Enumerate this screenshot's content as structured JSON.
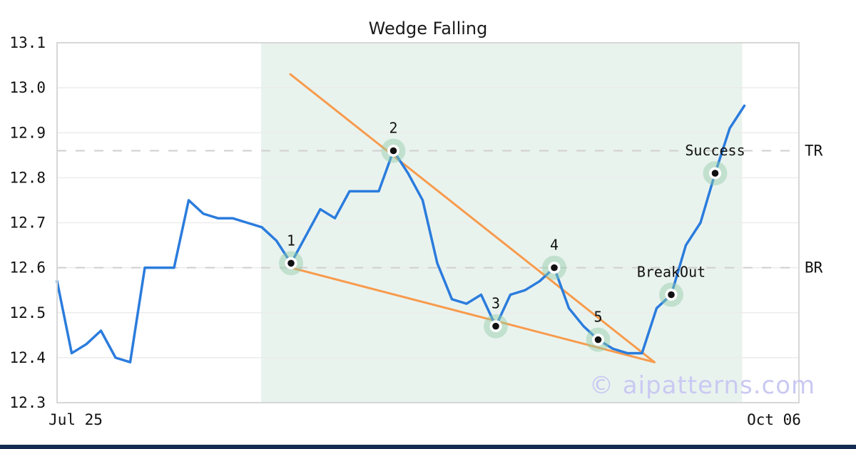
{
  "watermark": "© aipatterns.com",
  "colors": {
    "price_line": "#2b7cdd",
    "trendline": "#f79b4d",
    "pattern_zone": "#e9f3ee",
    "marker_halo": "rgba(144,203,167,0.45)",
    "marker_dot": "#111111",
    "gridline": "#ececec",
    "level_dash": "#cfcfcf",
    "plot_border": "#d7d7d7",
    "text": "#111111",
    "watermark_color": "#c9c9f2",
    "footer_bar": "#142c52"
  },
  "chart_data": {
    "type": "line",
    "title": "Wedge Falling",
    "ylim": [
      12.3,
      13.1
    ],
    "ytick_labels": [
      "13.1",
      "13.0",
      "12.9",
      "12.8",
      "12.7",
      "12.6",
      "12.5",
      "12.4",
      "12.3"
    ],
    "xtick_labels": [
      {
        "label": "Jul 25",
        "align": "left"
      },
      {
        "label": "Oct 06",
        "align": "right"
      }
    ],
    "series": {
      "name": "price",
      "values": [
        12.57,
        12.41,
        12.43,
        12.46,
        12.4,
        12.39,
        12.6,
        12.6,
        12.6,
        12.75,
        12.72,
        12.71,
        12.71,
        12.7,
        12.69,
        12.66,
        12.61,
        12.67,
        12.73,
        12.71,
        12.77,
        12.77,
        12.77,
        12.86,
        12.81,
        12.75,
        12.61,
        12.53,
        12.52,
        12.54,
        12.47,
        12.54,
        12.55,
        12.57,
        12.6,
        12.51,
        12.47,
        12.44,
        12.42,
        12.41,
        12.41,
        12.51,
        12.54,
        12.65,
        12.7,
        12.81,
        12.91,
        12.96
      ]
    },
    "levels": [
      {
        "label": "TR",
        "value": 12.86
      },
      {
        "label": "BR",
        "value": 12.6
      }
    ],
    "trendlines": [
      {
        "name": "upper",
        "from": {
          "i": 15.95,
          "value": 13.03
        },
        "to": {
          "i": 40.85,
          "value": 12.39
        }
      },
      {
        "name": "lower",
        "from": {
          "i": 16.0,
          "value": 12.6
        },
        "to": {
          "i": 40.85,
          "value": 12.39
        }
      }
    ],
    "pattern_zone": {
      "from_i": 13.95,
      "to_i": 46.85
    },
    "points": [
      {
        "label": "1",
        "i": 16,
        "value": 12.61
      },
      {
        "label": "2",
        "i": 23,
        "value": 12.86
      },
      {
        "label": "3",
        "i": 30,
        "value": 12.47
      },
      {
        "label": "4",
        "i": 34,
        "value": 12.6
      },
      {
        "label": "5",
        "i": 37,
        "value": 12.44
      },
      {
        "label": "BreakOut",
        "i": 42,
        "value": 12.54
      },
      {
        "label": "Success",
        "i": 45,
        "value": 12.81
      }
    ],
    "grid": true,
    "legend": false
  }
}
